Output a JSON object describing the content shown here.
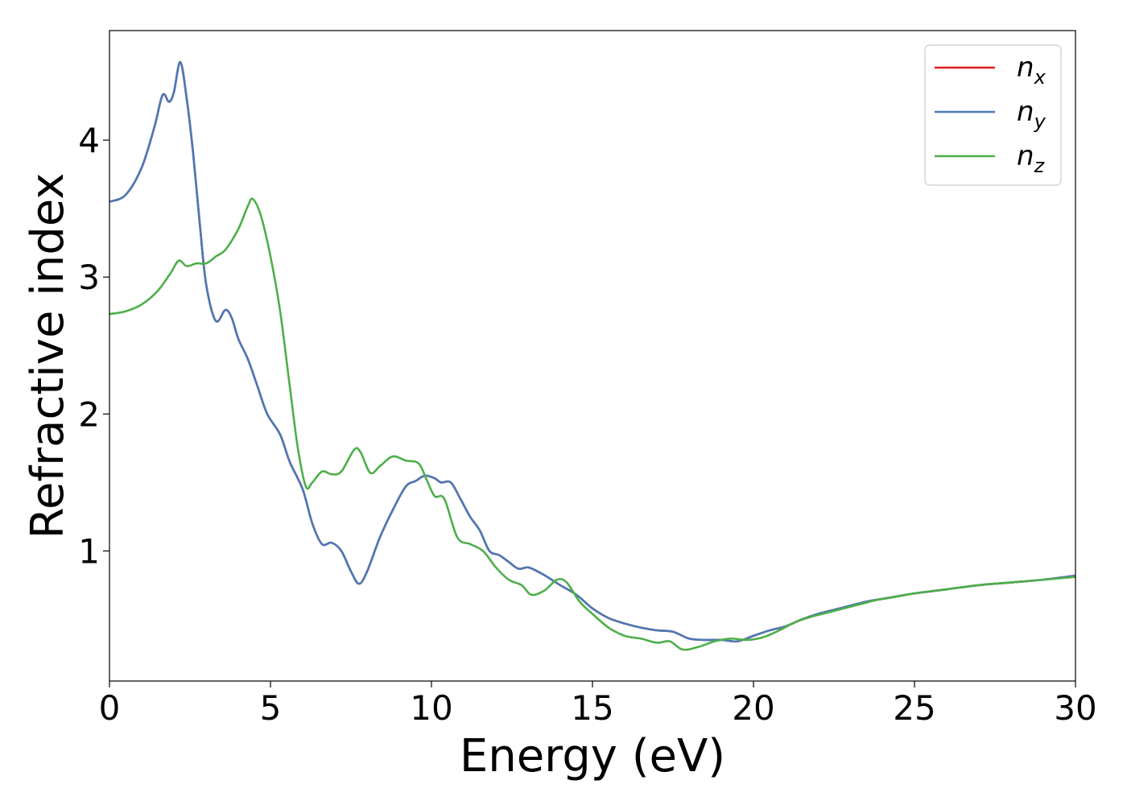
{
  "chart_data": {
    "type": "line",
    "xlabel": "Energy (eV)",
    "ylabel": "Refractive index",
    "xlim": [
      0,
      30
    ],
    "ylim": [
      0.05,
      4.8
    ],
    "xticks": [
      0,
      5,
      10,
      15,
      20,
      25,
      30
    ],
    "yticks": [
      1,
      2,
      3,
      4
    ],
    "grid": false,
    "legend_position": "top-right",
    "series": [
      {
        "name": "n_x",
        "label_base": "n",
        "label_sub": "x",
        "color": "#e41a1c",
        "x": [
          0,
          0.5,
          1.0,
          1.4,
          1.65,
          1.85,
          2.0,
          2.2,
          2.4,
          2.6,
          2.8,
          3.0,
          3.3,
          3.6,
          3.8,
          4.0,
          4.3,
          4.6,
          4.9,
          5.3,
          5.6,
          6.0,
          6.3,
          6.6,
          6.9,
          7.2,
          7.5,
          7.75,
          8.0,
          8.4,
          8.8,
          9.2,
          9.5,
          9.8,
          10.1,
          10.3,
          10.6,
          10.9,
          11.2,
          11.5,
          11.8,
          12.1,
          12.4,
          12.7,
          13.0,
          13.3,
          13.6,
          14.0,
          14.5,
          15.0,
          15.5,
          16.0,
          16.5,
          17.0,
          17.5,
          18.0,
          18.5,
          19.0,
          19.5,
          20.0,
          20.5,
          21.0,
          21.5,
          22.0,
          22.5,
          23.0,
          23.5,
          24.0,
          24.5,
          25.0,
          26.0,
          27.0,
          28.0,
          29.0,
          30.0
        ],
        "y": [
          3.55,
          3.6,
          3.8,
          4.1,
          4.33,
          4.28,
          4.35,
          4.57,
          4.3,
          3.9,
          3.4,
          2.95,
          2.68,
          2.76,
          2.7,
          2.55,
          2.4,
          2.2,
          2.0,
          1.85,
          1.65,
          1.45,
          1.2,
          1.05,
          1.06,
          1.0,
          0.85,
          0.76,
          0.85,
          1.1,
          1.3,
          1.47,
          1.51,
          1.55,
          1.53,
          1.5,
          1.5,
          1.38,
          1.25,
          1.15,
          1.0,
          0.97,
          0.92,
          0.87,
          0.88,
          0.85,
          0.81,
          0.75,
          0.68,
          0.58,
          0.51,
          0.47,
          0.44,
          0.42,
          0.41,
          0.36,
          0.35,
          0.35,
          0.34,
          0.38,
          0.42,
          0.45,
          0.5,
          0.54,
          0.57,
          0.6,
          0.63,
          0.65,
          0.67,
          0.69,
          0.72,
          0.75,
          0.77,
          0.79,
          0.82
        ]
      },
      {
        "name": "n_y",
        "label_base": "n",
        "label_sub": "y",
        "color": "#4a7ab5",
        "x": [
          0,
          0.5,
          1.0,
          1.4,
          1.65,
          1.85,
          2.0,
          2.2,
          2.4,
          2.6,
          2.8,
          3.0,
          3.3,
          3.6,
          3.8,
          4.0,
          4.3,
          4.6,
          4.9,
          5.3,
          5.6,
          6.0,
          6.3,
          6.6,
          6.9,
          7.2,
          7.5,
          7.75,
          8.0,
          8.4,
          8.8,
          9.2,
          9.5,
          9.8,
          10.1,
          10.3,
          10.6,
          10.9,
          11.2,
          11.5,
          11.8,
          12.1,
          12.4,
          12.7,
          13.0,
          13.3,
          13.6,
          14.0,
          14.5,
          15.0,
          15.5,
          16.0,
          16.5,
          17.0,
          17.5,
          18.0,
          18.5,
          19.0,
          19.5,
          20.0,
          20.5,
          21.0,
          21.5,
          22.0,
          22.5,
          23.0,
          23.5,
          24.0,
          24.5,
          25.0,
          26.0,
          27.0,
          28.0,
          29.0,
          30.0
        ],
        "y": [
          3.55,
          3.6,
          3.8,
          4.1,
          4.33,
          4.28,
          4.35,
          4.57,
          4.3,
          3.9,
          3.4,
          2.95,
          2.68,
          2.76,
          2.7,
          2.55,
          2.4,
          2.2,
          2.0,
          1.85,
          1.65,
          1.45,
          1.2,
          1.05,
          1.06,
          1.0,
          0.85,
          0.76,
          0.85,
          1.1,
          1.3,
          1.47,
          1.51,
          1.55,
          1.53,
          1.5,
          1.5,
          1.38,
          1.25,
          1.15,
          1.0,
          0.97,
          0.92,
          0.87,
          0.88,
          0.85,
          0.81,
          0.75,
          0.68,
          0.58,
          0.51,
          0.47,
          0.44,
          0.42,
          0.41,
          0.36,
          0.35,
          0.35,
          0.34,
          0.38,
          0.42,
          0.45,
          0.5,
          0.54,
          0.57,
          0.6,
          0.63,
          0.65,
          0.67,
          0.69,
          0.72,
          0.75,
          0.77,
          0.79,
          0.82
        ]
      },
      {
        "name": "n_z",
        "label_base": "n",
        "label_sub": "z",
        "color": "#4daf4a",
        "x": [
          0,
          0.5,
          1.0,
          1.5,
          1.9,
          2.15,
          2.4,
          2.7,
          3.0,
          3.3,
          3.6,
          4.0,
          4.3,
          4.45,
          4.7,
          5.0,
          5.3,
          5.6,
          5.85,
          6.1,
          6.3,
          6.6,
          6.9,
          7.2,
          7.6,
          7.8,
          8.1,
          8.4,
          8.8,
          9.2,
          9.6,
          9.85,
          10.1,
          10.4,
          10.8,
          11.2,
          11.6,
          12.0,
          12.4,
          12.8,
          13.1,
          13.5,
          13.9,
          14.2,
          14.6,
          15.0,
          15.5,
          16.0,
          16.5,
          17.0,
          17.4,
          17.8,
          18.3,
          18.8,
          19.3,
          19.8,
          20.3,
          20.8,
          21.3,
          21.8,
          22.3,
          22.8,
          23.3,
          23.8,
          24.3,
          25.0,
          26.0,
          27.0,
          28.0,
          29.0,
          30.0
        ],
        "y": [
          2.73,
          2.75,
          2.8,
          2.9,
          3.03,
          3.12,
          3.08,
          3.1,
          3.1,
          3.15,
          3.2,
          3.35,
          3.52,
          3.57,
          3.45,
          3.15,
          2.75,
          2.2,
          1.75,
          1.47,
          1.5,
          1.58,
          1.56,
          1.58,
          1.74,
          1.72,
          1.57,
          1.62,
          1.69,
          1.66,
          1.64,
          1.52,
          1.4,
          1.38,
          1.1,
          1.05,
          1.0,
          0.88,
          0.79,
          0.75,
          0.68,
          0.71,
          0.79,
          0.77,
          0.63,
          0.54,
          0.44,
          0.38,
          0.36,
          0.33,
          0.34,
          0.28,
          0.3,
          0.34,
          0.36,
          0.35,
          0.37,
          0.42,
          0.48,
          0.52,
          0.55,
          0.58,
          0.61,
          0.64,
          0.66,
          0.69,
          0.72,
          0.75,
          0.77,
          0.79,
          0.81
        ]
      }
    ]
  }
}
